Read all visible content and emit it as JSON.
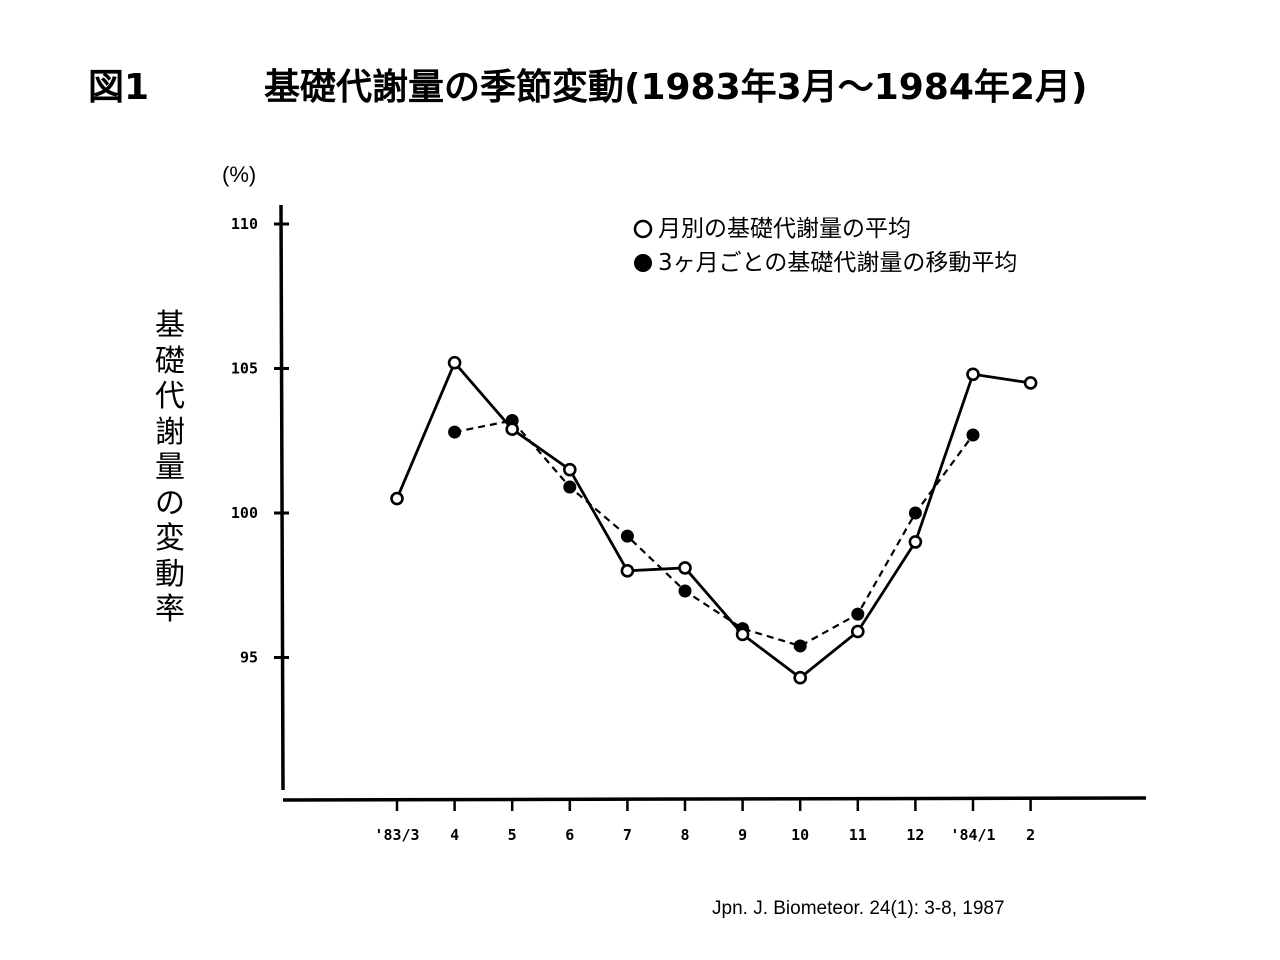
{
  "figure": {
    "label": "図1",
    "title": "基礎代謝量の季節変動(1983年3月～1984年2月)",
    "source": "Jpn. J. Biometeor. 24(1): 3-8, 1987"
  },
  "chart_data": {
    "type": "line",
    "title": "基礎代謝量の季節変動(1983年3月～1984年2月)",
    "xlabel": "",
    "ylabel": "基礎代謝量の変動率",
    "yunit": "(%)",
    "ylim": [
      90,
      110
    ],
    "yticks": [
      110,
      105,
      100,
      95
    ],
    "categories": [
      "'83/3",
      "4",
      "5",
      "6",
      "7",
      "8",
      "9",
      "10",
      "11",
      "12",
      "'84/1",
      "2"
    ],
    "legend_position": "top-right",
    "grid": false,
    "series": [
      {
        "name": "月別の基礎代謝量の平均",
        "marker": "open-circle",
        "line": "solid",
        "values": [
          100.5,
          105.2,
          102.9,
          101.5,
          98.0,
          98.1,
          95.8,
          94.3,
          95.9,
          99.0,
          104.8,
          104.5
        ]
      },
      {
        "name": "3ヶ月ごとの基礎代謝量の移動平均",
        "marker": "filled-circle",
        "line": "dashed",
        "values": [
          null,
          102.8,
          103.2,
          100.9,
          99.2,
          97.3,
          96.0,
          95.4,
          96.5,
          100.0,
          102.7,
          null
        ]
      }
    ]
  },
  "legend": {
    "open_symbol": "○",
    "open_label": "月別の基礎代謝量の平均",
    "filled_symbol": "●",
    "filled_label": "3ヶ月ごとの基礎代謝量の移動平均"
  }
}
